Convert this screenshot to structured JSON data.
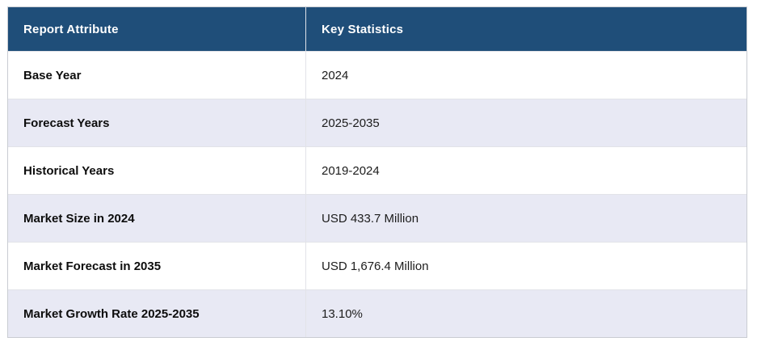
{
  "colors": {
    "header_bg": "#1F4E79",
    "header_text": "#FFFFFF",
    "row_bg": "#FFFFFF",
    "row_alt_bg": "#E8E9F4",
    "border": "#C9CCD2",
    "label_text": "#0D0D0D",
    "value_text": "#1C1C1C"
  },
  "table": {
    "columns": [
      {
        "label": "Report Attribute"
      },
      {
        "label": "Key Statistics"
      }
    ],
    "rows": [
      {
        "attribute": "Base Year",
        "value": "2024"
      },
      {
        "attribute": "Forecast Years",
        "value": "2025-2035"
      },
      {
        "attribute": "Historical Years",
        "value": "2019-2024"
      },
      {
        "attribute": "Market Size in 2024",
        "value": "USD 433.7 Million"
      },
      {
        "attribute": "Market Forecast in 2035",
        "value": "USD 1,676.4 Million"
      },
      {
        "attribute": "Market Growth Rate 2025-2035",
        "value": "13.10%"
      }
    ]
  },
  "chart_data": {
    "type": "table",
    "title": "",
    "columns": [
      "Report Attribute",
      "Key Statistics"
    ],
    "rows": [
      [
        "Base Year",
        "2024"
      ],
      [
        "Forecast Years",
        "2025-2035"
      ],
      [
        "Historical Years",
        "2019-2024"
      ],
      [
        "Market Size in 2024",
        "USD 433.7 Million"
      ],
      [
        "Market Forecast in 2035",
        "USD 1,676.4 Million"
      ],
      [
        "Market Growth Rate 2025-2035",
        "13.10%"
      ]
    ]
  }
}
